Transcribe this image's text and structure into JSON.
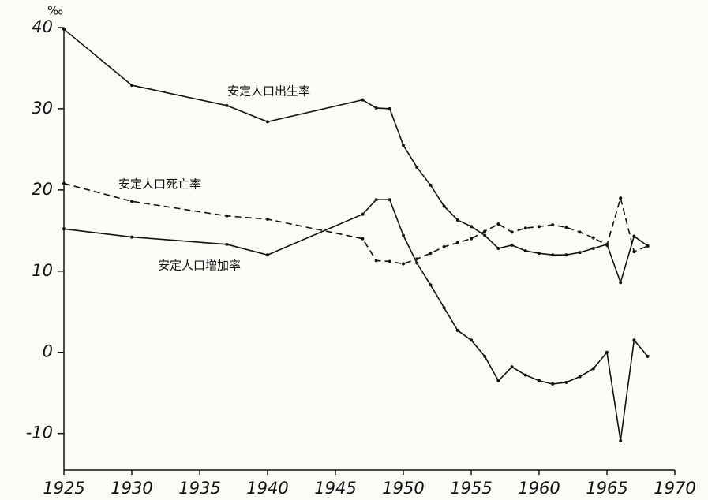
{
  "chart_data": {
    "type": "line",
    "y_label": "‰",
    "x": [
      1925,
      1930,
      1937,
      1940,
      1947,
      1948,
      1949,
      1950,
      1951,
      1952,
      1953,
      1954,
      1955,
      1956,
      1957,
      1958,
      1959,
      1960,
      1961,
      1962,
      1963,
      1964,
      1965,
      1966,
      1967,
      1968
    ],
    "series": [
      {
        "name": "安定人口出生率",
        "color": "#111111",
        "dash": false,
        "values": [
          39.8,
          32.9,
          30.4,
          28.4,
          31.1,
          30.1,
          30.0,
          25.5,
          22.8,
          20.6,
          18.0,
          16.3,
          15.5,
          14.4,
          12.8,
          13.2,
          12.5,
          12.2,
          12.0,
          12.0,
          12.3,
          12.8,
          13.3,
          8.6,
          14.3,
          13.1
        ]
      },
      {
        "name": "安定人口死亡率",
        "color": "#111111",
        "dash": true,
        "values": [
          20.8,
          18.6,
          16.8,
          16.4,
          14.0,
          11.3,
          11.2,
          10.9,
          11.5,
          12.2,
          13.0,
          13.5,
          14.0,
          14.9,
          15.8,
          14.8,
          15.3,
          15.5,
          15.7,
          15.4,
          14.8,
          14.1,
          13.2,
          19.0,
          12.4,
          13.1
        ]
      },
      {
        "name": "安定人口増加率",
        "color": "#111111",
        "dash": false,
        "values": [
          15.2,
          14.2,
          13.3,
          12.0,
          17.0,
          18.8,
          18.8,
          14.4,
          11.0,
          8.3,
          5.5,
          2.7,
          1.5,
          -0.5,
          -3.5,
          -1.8,
          -2.8,
          -3.5,
          -3.9,
          -3.7,
          -3.0,
          -2.0,
          0.0,
          -10.9,
          1.5,
          -0.5
        ]
      }
    ],
    "xlim": [
      1925,
      1970
    ],
    "xticks": [
      1925,
      1930,
      1935,
      1940,
      1945,
      1950,
      1955,
      1960,
      1965,
      1970
    ],
    "ylim": [
      -14.5,
      40
    ],
    "yticks": [
      40,
      30,
      20,
      10,
      0,
      -10
    ],
    "grid": false
  }
}
